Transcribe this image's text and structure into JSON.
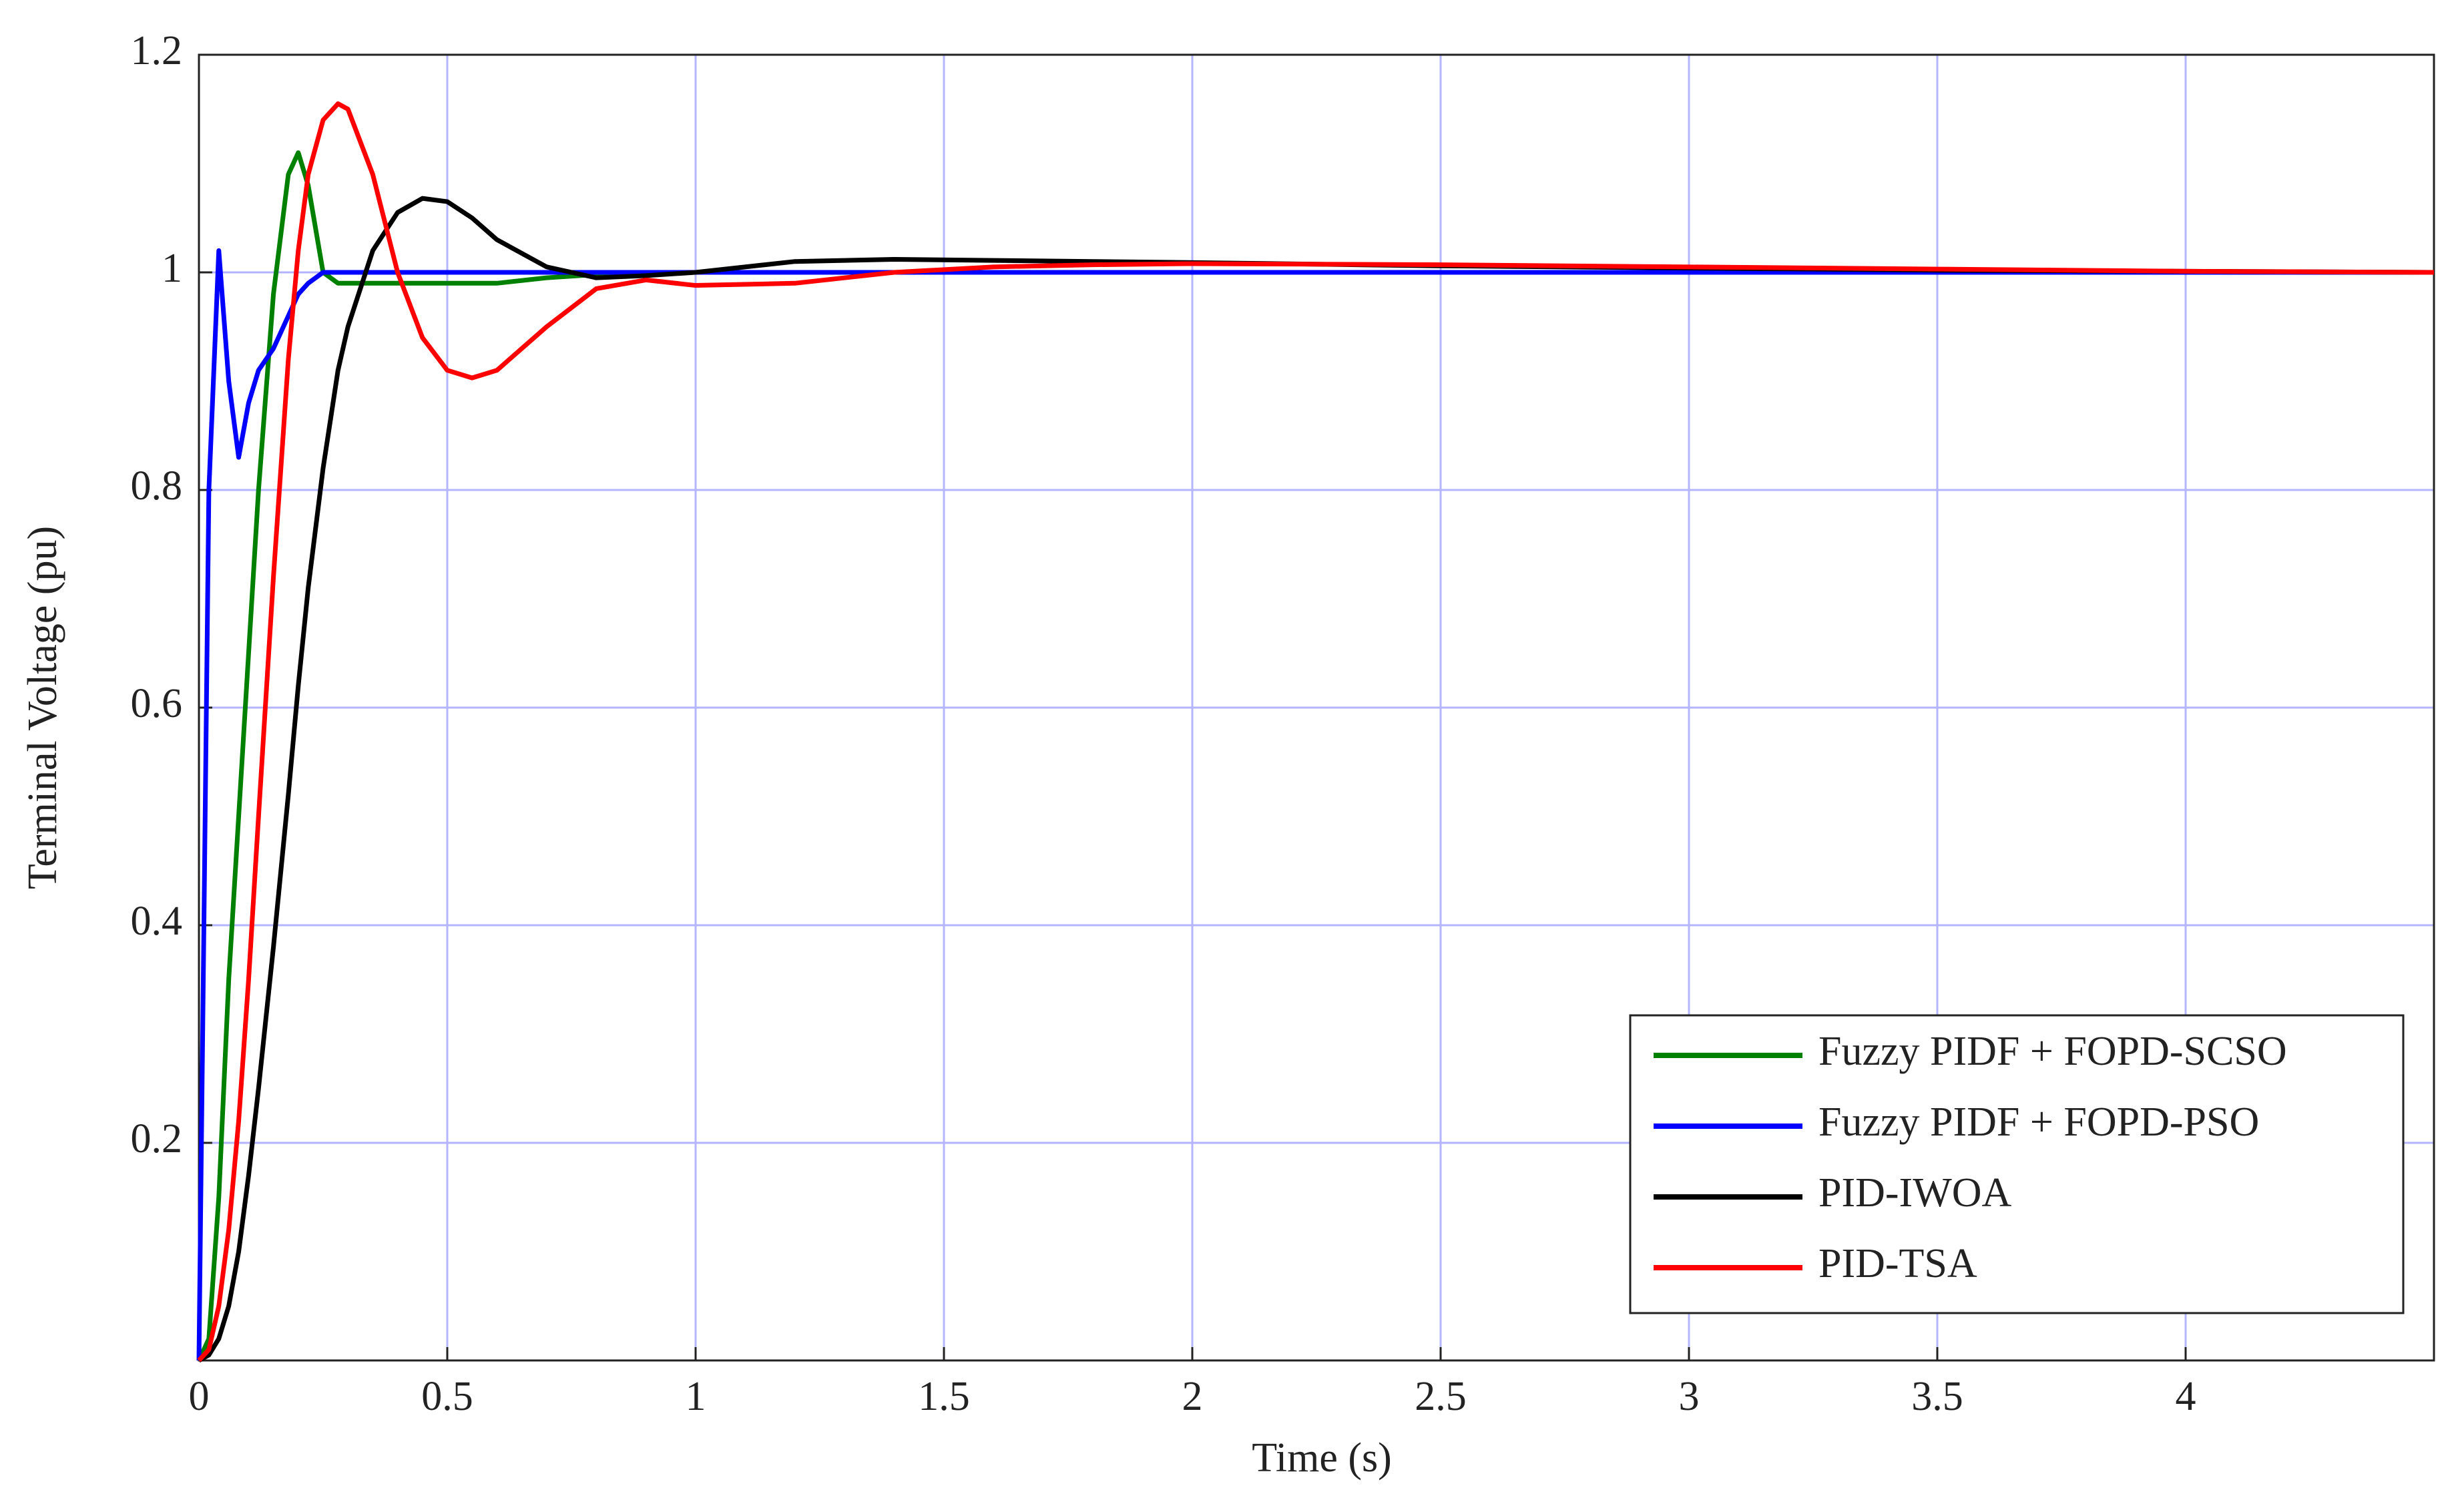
{
  "chart_data": {
    "type": "line",
    "x_label": "Time (s)",
    "y_label": "Terminal Voltage (pu)",
    "x": [
      0,
      0.02,
      0.04,
      0.06,
      0.08,
      0.1,
      0.12,
      0.15,
      0.18,
      0.2,
      0.22,
      0.25,
      0.28,
      0.3,
      0.35,
      0.4,
      0.45,
      0.5,
      0.55,
      0.6,
      0.7,
      0.8,
      0.9,
      1,
      1.2,
      1.4,
      1.6,
      1.8,
      2,
      2.5,
      3,
      3.5,
      4,
      4.5
    ],
    "series": [
      {
        "name": "Fuzzy PIDF + FOPD-SCSO",
        "color": "#008000",
        "values": [
          0,
          0.02,
          0.15,
          0.35,
          0.5,
          0.65,
          0.8,
          0.98,
          1.09,
          1.11,
          1.08,
          1.0,
          0.99,
          0.99,
          0.99,
          0.99,
          0.99,
          0.99,
          0.99,
          0.99,
          0.995,
          0.998,
          1.0,
          1.0,
          1.0,
          1.0,
          1.0,
          1.0,
          1.0,
          1.0,
          1.0,
          1.0,
          1.0,
          1.0
        ]
      },
      {
        "name": "Fuzzy PIDF + FOPD-PSO",
        "color": "#0000ff",
        "values": [
          0,
          0.8,
          1.02,
          0.9,
          0.83,
          0.88,
          0.91,
          0.93,
          0.96,
          0.98,
          0.99,
          1.0,
          1.0,
          1.0,
          1.0,
          1.0,
          1.0,
          1.0,
          1.0,
          1.0,
          1.0,
          1.0,
          1.0,
          1.0,
          1.0,
          1.0,
          1.0,
          1.0,
          1.0,
          1.0,
          1.0,
          1.0,
          1.0,
          1.0
        ]
      },
      {
        "name": "PID-IWOA",
        "color": "#000000",
        "values": [
          0,
          0.005,
          0.02,
          0.05,
          0.1,
          0.17,
          0.25,
          0.38,
          0.52,
          0.62,
          0.71,
          0.82,
          0.91,
          0.95,
          1.02,
          1.055,
          1.068,
          1.065,
          1.05,
          1.03,
          1.005,
          0.995,
          0.997,
          1.0,
          1.01,
          1.012,
          1.011,
          1.01,
          1.009,
          1.006,
          1.004,
          1.002,
          1.001,
          1.0
        ]
      },
      {
        "name": "PID-TSA",
        "color": "#ff0000",
        "values": [
          0,
          0.01,
          0.05,
          0.12,
          0.22,
          0.35,
          0.5,
          0.72,
          0.92,
          1.02,
          1.09,
          1.14,
          1.155,
          1.15,
          1.09,
          1.0,
          0.94,
          0.91,
          0.903,
          0.91,
          0.95,
          0.985,
          0.993,
          0.988,
          0.99,
          1.0,
          1.005,
          1.007,
          1.008,
          1.007,
          1.005,
          1.003,
          1.001,
          1.0
        ]
      }
    ],
    "xlim": [
      0,
      4.5
    ],
    "ylim": [
      0,
      1.2
    ],
    "xticks": [
      0,
      0.5,
      1,
      1.5,
      2,
      2.5,
      3,
      3.5,
      4
    ],
    "yticks": [
      0.2,
      0.4,
      0.6,
      0.8,
      1,
      1.2
    ],
    "grid": true,
    "legend": "lower-right"
  }
}
